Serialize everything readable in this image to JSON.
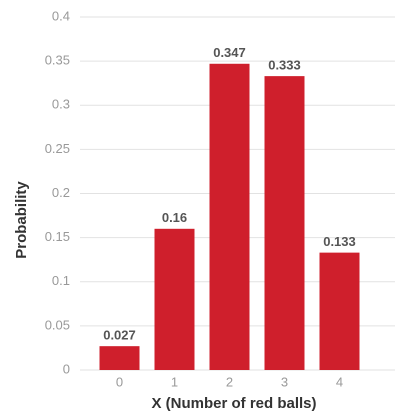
{
  "chart_data": {
    "type": "bar",
    "categories": [
      "0",
      "1",
      "2",
      "3",
      "4"
    ],
    "values": [
      0.027,
      0.16,
      0.347,
      0.333,
      0.133
    ],
    "color": "#cf1f2c",
    "xlabel": "X (Number of red balls)",
    "ylabel": "Probability",
    "ylim": [
      0,
      0.4
    ],
    "yticks": [
      0,
      0.05,
      0.1,
      0.15,
      0.2,
      0.25,
      0.3,
      0.35,
      0.4
    ],
    "grid": true
  }
}
